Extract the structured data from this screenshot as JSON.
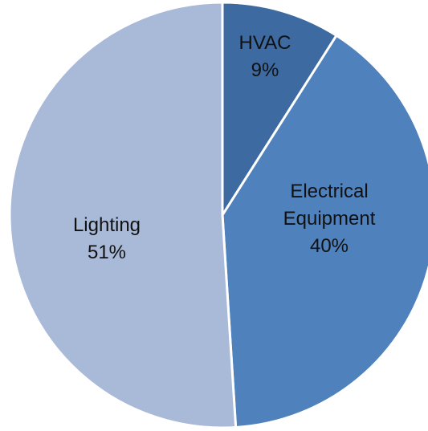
{
  "chart_data": {
    "type": "pie",
    "categories": [
      "HVAC",
      "Electrical Equipment",
      "Lighting"
    ],
    "values": [
      9,
      40,
      51
    ],
    "labels": [
      [
        "HVAC",
        "9%"
      ],
      [
        "Electrical",
        "Equipment",
        "40%"
      ],
      [
        "Lighting",
        "51%"
      ]
    ],
    "colors": [
      "#3d6aa1",
      "#4f81bd",
      "#a9b9d8"
    ]
  }
}
